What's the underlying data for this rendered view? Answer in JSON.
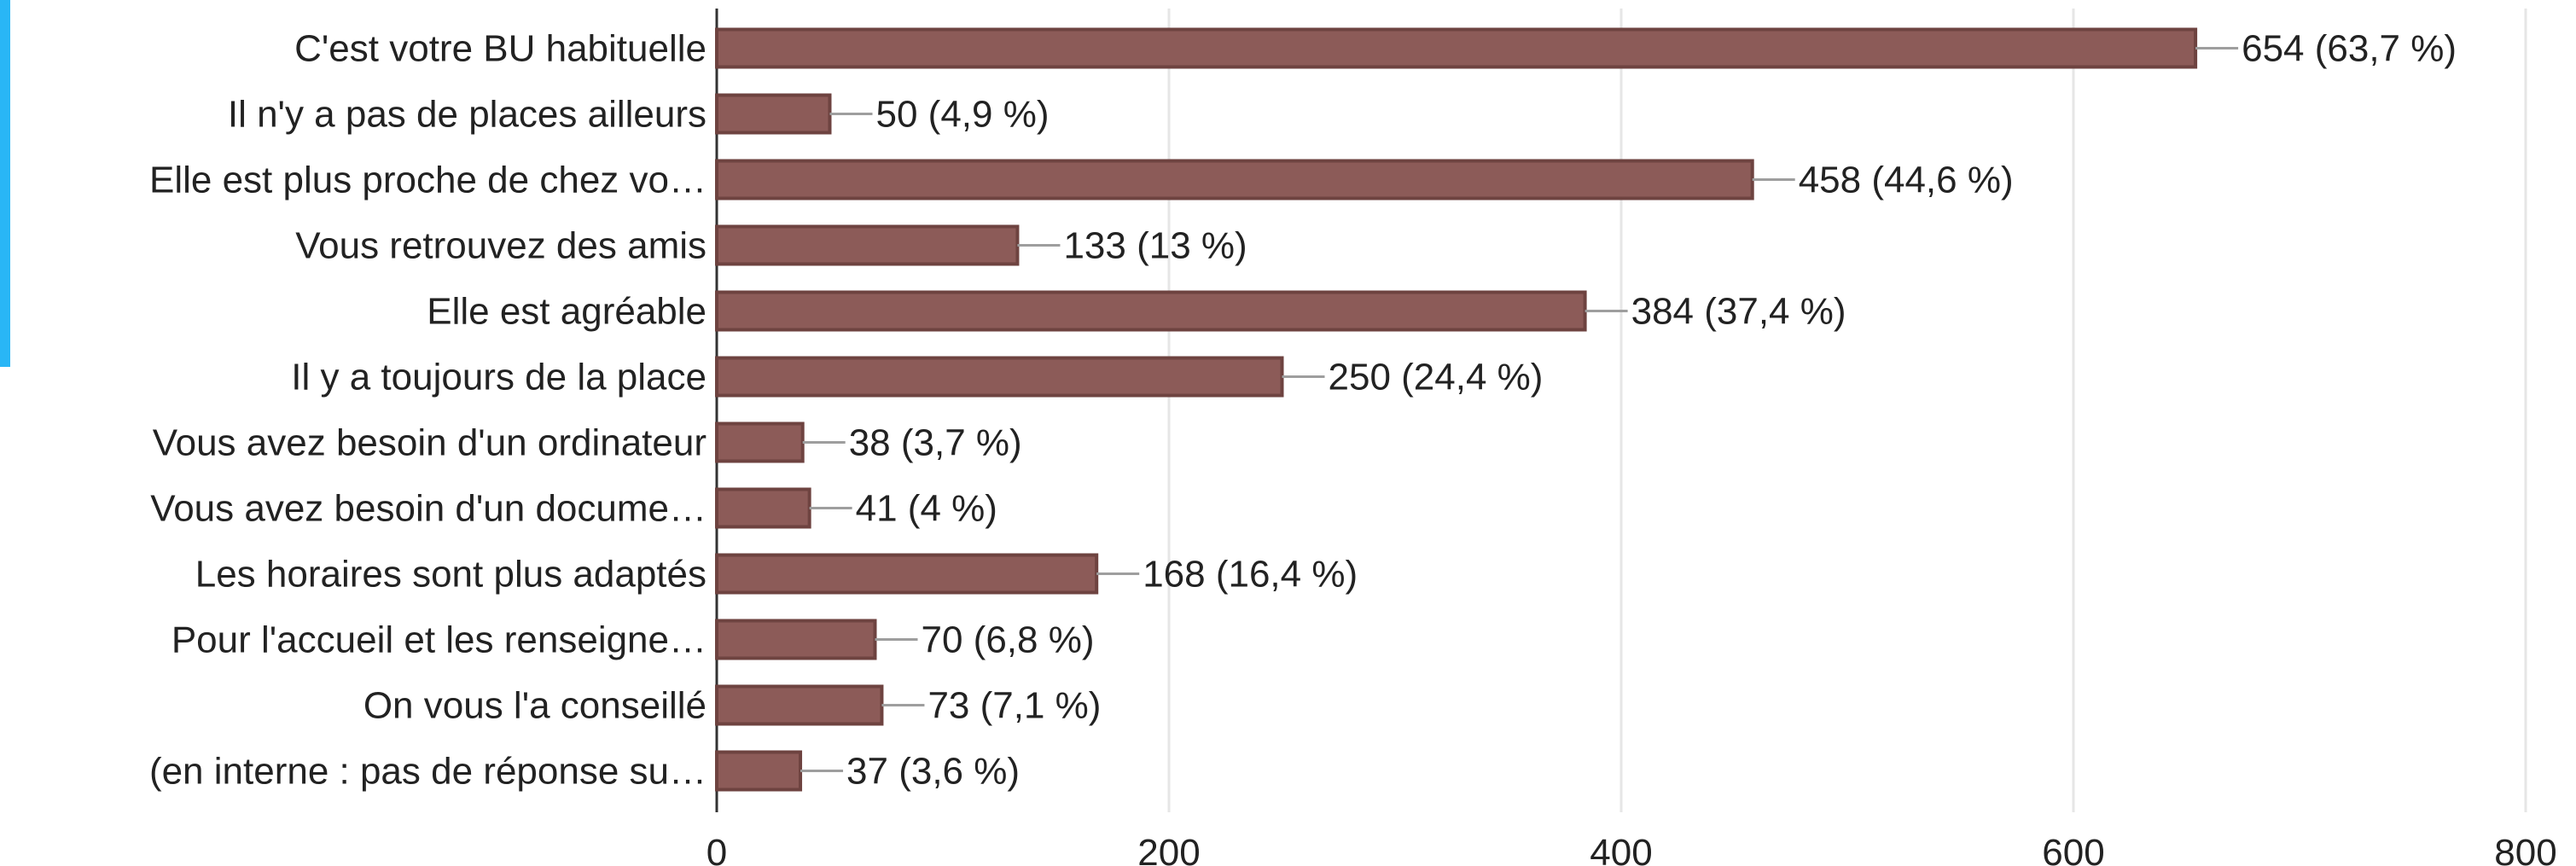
{
  "colors": {
    "bar_fill": "#8c5b58",
    "bar_stroke": "#6e4340",
    "accent": "#29b6f6"
  },
  "chart_data": {
    "type": "bar",
    "orientation": "horizontal",
    "categories": [
      "C'est votre BU habituelle",
      "Il n'y a pas de places ailleurs",
      "Elle est plus proche de chez vo…",
      "Vous retrouvez des amis",
      "Elle est agréable",
      "Il y a toujours de la place",
      "Vous avez besoin d'un ordinateur",
      "Vous avez besoin d'un docume…",
      "Les horaires sont plus adaptés",
      "Pour l'accueil et les renseigne…",
      "On vous l'a conseillé",
      "(en interne : pas de réponse su…"
    ],
    "values": [
      654,
      50,
      458,
      133,
      384,
      250,
      38,
      41,
      168,
      70,
      73,
      37
    ],
    "value_labels": [
      "654 (63,7 %)",
      "50 (4,9 %)",
      "458 (44,6 %)",
      "133 (13 %)",
      "384 (37,4 %)",
      "250 (24,4 %)",
      "38 (3,7 %)",
      "41 (4 %)",
      "168 (16,4 %)",
      "70 (6,8 %)",
      "73 (7,1 %)",
      "37 (3,6 %)"
    ],
    "x_ticks": [
      0,
      200,
      400,
      600,
      800
    ],
    "x_tick_labels": [
      "0",
      "200",
      "400",
      "600",
      "800"
    ],
    "xlim": [
      0,
      800
    ],
    "grid": true,
    "title": "",
    "xlabel": "",
    "ylabel": ""
  }
}
